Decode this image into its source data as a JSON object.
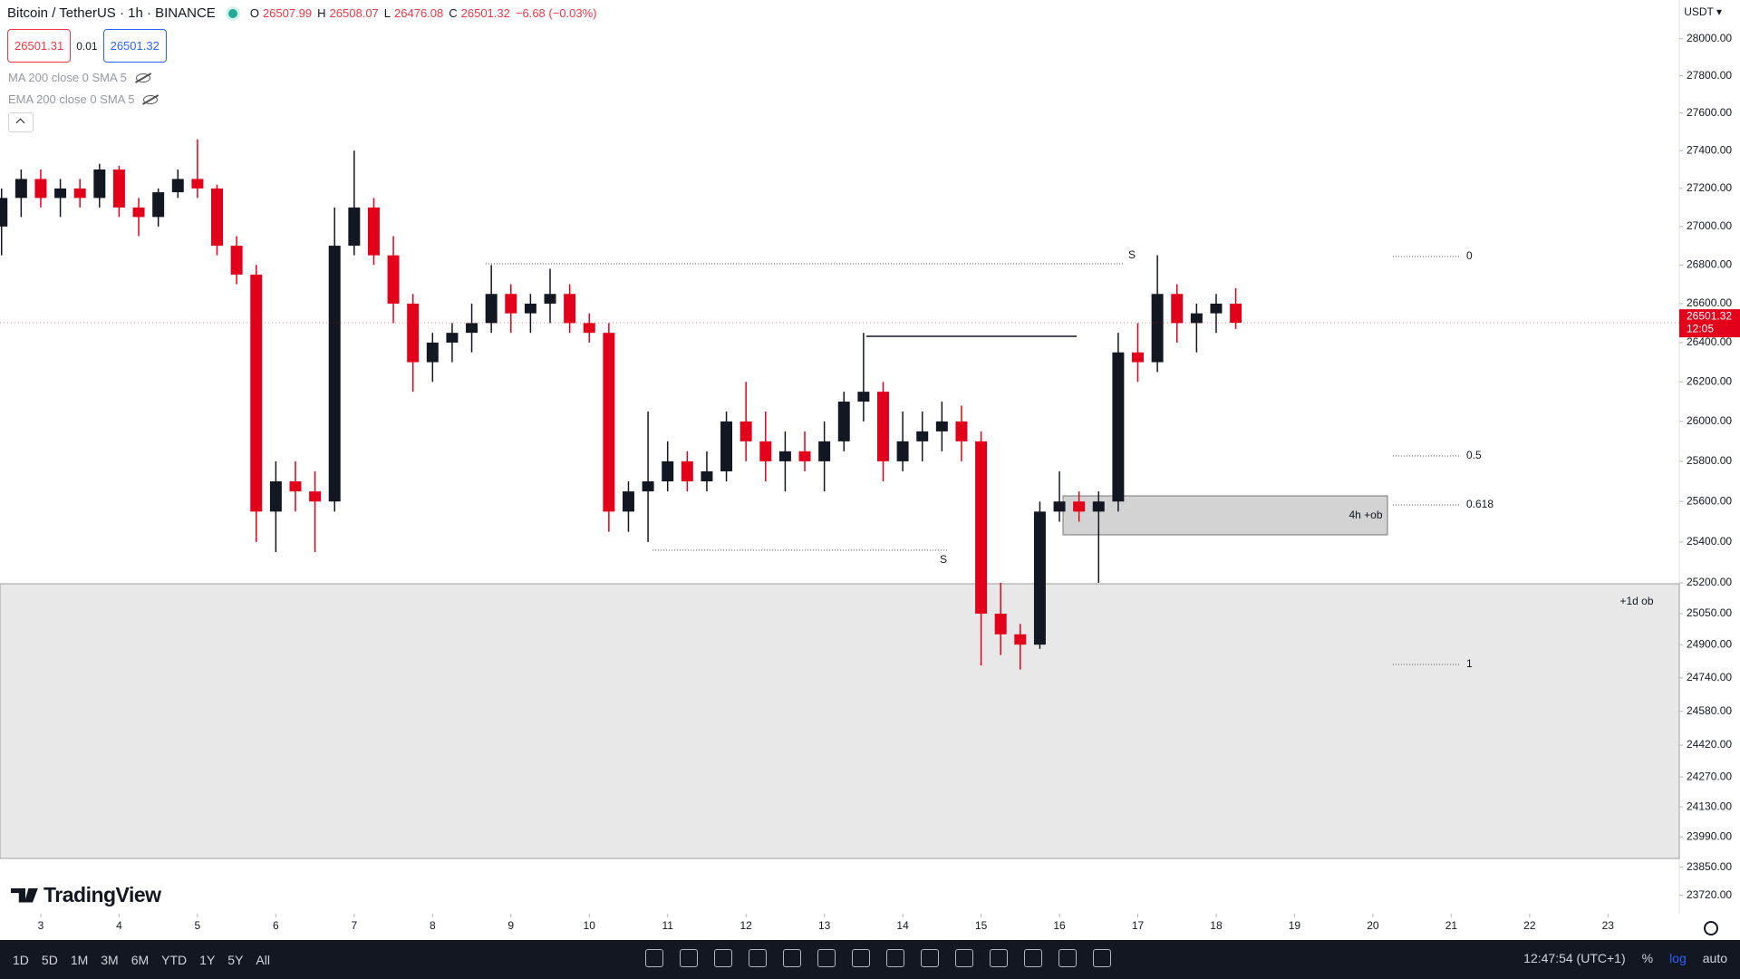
{
  "header": {
    "symbol": "Bitcoin / TetherUS · 1h · BINANCE",
    "ohlc": [
      {
        "label": "O",
        "value": "26507.99"
      },
      {
        "label": "H",
        "value": "26508.07"
      },
      {
        "label": "L",
        "value": "26476.08"
      },
      {
        "label": "C",
        "value": "26501.32"
      }
    ],
    "change": "−6.68 (−0.03%)",
    "sell": "26501.31",
    "spread": "0.01",
    "buy": "26501.32",
    "indicators": [
      "MA 200 close 0 SMA 5",
      "EMA 200 close 0 SMA 5"
    ],
    "currency": "USDT ▾",
    "brand": "TradingView"
  },
  "drawings": {
    "daily_zone": "+1d ob",
    "h4_zone": "4h +ob",
    "high_label": "S",
    "low_label": "S",
    "fib": [
      "0",
      "0.5",
      "0.618",
      "1"
    ]
  },
  "chart_data": {
    "type": "candlestick",
    "log_scale": true,
    "up_color": "#131722",
    "down_color": "#e3001b",
    "x": [
      2.5,
      2.75,
      3,
      3.25,
      3.5,
      3.75,
      4,
      4.25,
      4.5,
      4.75,
      5,
      5.25,
      5.5,
      5.75,
      6,
      6.25,
      6.5,
      6.75,
      7,
      7.25,
      7.5,
      7.75,
      8,
      8.25,
      8.5,
      8.75,
      9,
      9.25,
      9.5,
      9.75,
      10,
      10.25,
      10.5,
      10.75,
      11,
      11.25,
      11.5,
      11.75,
      12,
      12.25,
      12.5,
      12.75,
      13,
      13.25,
      13.5,
      13.75,
      14,
      14.25,
      14.5,
      14.75,
      15,
      15.25,
      15.5,
      15.75,
      16,
      16.25,
      16.5,
      16.75,
      17,
      17.25,
      17.5,
      17.75,
      18,
      18.25
    ],
    "open": [
      27000,
      27150,
      27250,
      27150,
      27200,
      27150,
      27300,
      27100,
      27050,
      27180,
      27250,
      27200,
      26900,
      26750,
      25550,
      25700,
      25650,
      25600,
      26900,
      27100,
      26850,
      26600,
      26300,
      26400,
      26450,
      26500,
      26650,
      26550,
      26600,
      26650,
      26500,
      26450,
      25550,
      25650,
      25700,
      25800,
      25700,
      25750,
      26000,
      25900,
      25800,
      25850,
      25800,
      25900,
      26100,
      26150,
      25800,
      25900,
      25950,
      26000,
      25900,
      25050,
      24950,
      24900,
      25550,
      25600,
      25550,
      25600,
      26350,
      26300,
      26650,
      26500,
      26550,
      26600
    ],
    "high": [
      27200,
      27300,
      27300,
      27250,
      27250,
      27330,
      27320,
      27150,
      27200,
      27300,
      27460,
      27220,
      26950,
      26800,
      25800,
      25800,
      25750,
      27100,
      27400,
      27150,
      26950,
      26650,
      26450,
      26500,
      26600,
      26800,
      26700,
      26650,
      26780,
      26700,
      26550,
      26500,
      25700,
      26050,
      25900,
      25850,
      25850,
      26050,
      26200,
      26050,
      25950,
      25950,
      26000,
      26150,
      26450,
      26200,
      26050,
      26050,
      26100,
      26080,
      25950,
      25200,
      25000,
      25600,
      25750,
      25650,
      25650,
      26450,
      26500,
      26850,
      26700,
      26600,
      26650,
      26680
    ],
    "low": [
      26850,
      27050,
      27100,
      27050,
      27100,
      27100,
      27050,
      26950,
      27000,
      27150,
      27150,
      26850,
      26700,
      25400,
      25350,
      25550,
      25350,
      25550,
      26850,
      26800,
      26500,
      26150,
      26200,
      26300,
      26350,
      26450,
      26450,
      26450,
      26500,
      26450,
      26400,
      25450,
      25450,
      25400,
      25650,
      25650,
      25650,
      25700,
      25800,
      25700,
      25650,
      25750,
      25650,
      25850,
      26000,
      25700,
      25750,
      25800,
      25850,
      25800,
      24800,
      24850,
      24780,
      24880,
      25500,
      25500,
      25200,
      25550,
      26200,
      26250,
      26400,
      26350,
      26450,
      26470
    ],
    "close": [
      27150,
      27250,
      27150,
      27200,
      27150,
      27300,
      27100,
      27050,
      27180,
      27250,
      27200,
      26900,
      26750,
      25550,
      25700,
      25650,
      25600,
      26900,
      27100,
      26850,
      26600,
      26300,
      26400,
      26450,
      26500,
      26650,
      26550,
      26600,
      26650,
      26500,
      26450,
      25550,
      25650,
      25700,
      25800,
      25700,
      25750,
      26000,
      25900,
      25800,
      25850,
      25800,
      25900,
      26100,
      26150,
      25800,
      25900,
      25950,
      26000,
      25900,
      25050,
      24950,
      24900,
      25550,
      25600,
      25550,
      25600,
      26350,
      26300,
      26650,
      26500,
      26550,
      26600,
      26501.32
    ],
    "last_price": "26501.32",
    "countdown": "12:05",
    "ylim": [
      23644,
      28211
    ],
    "yticks": [
      {
        "value": 28000,
        "label": "28000.00"
      },
      {
        "value": 27800,
        "label": "27800.00"
      },
      {
        "value": 27600,
        "label": "27600.00"
      },
      {
        "value": 27400,
        "label": "27400.00"
      },
      {
        "value": 27200,
        "label": "27200.00"
      },
      {
        "value": 27000,
        "label": "27000.00"
      },
      {
        "value": 26800,
        "label": "26800.00"
      },
      {
        "value": 26600,
        "label": "26600.00"
      },
      {
        "value": 26400,
        "label": "26400.00"
      },
      {
        "value": 26200,
        "label": "26200.00"
      },
      {
        "value": 26000,
        "label": "26000.00"
      },
      {
        "value": 25800,
        "label": "25800.00"
      },
      {
        "value": 25600,
        "label": "25600.00"
      },
      {
        "value": 25400,
        "label": "25400.00"
      },
      {
        "value": 25200,
        "label": "25200.00"
      },
      {
        "value": 25050,
        "label": "25050.00"
      },
      {
        "value": 24900,
        "label": "24900.00"
      },
      {
        "value": 24740,
        "label": "24740.00"
      },
      {
        "value": 24580,
        "label": "24580.00"
      },
      {
        "value": 24420,
        "label": "24420.00"
      },
      {
        "value": 24270,
        "label": "24270.00"
      },
      {
        "value": 24130,
        "label": "24130.00"
      },
      {
        "value": 23990,
        "label": "23990.00"
      },
      {
        "value": 23850,
        "label": "23850.00"
      },
      {
        "value": 23720,
        "label": "23720.00"
      }
    ],
    "xlim": [
      2.48,
      23.91
    ],
    "xticks": [
      3,
      4,
      5,
      6,
      7,
      8,
      9,
      10,
      11,
      12,
      13,
      14,
      15,
      16,
      17,
      18,
      19,
      20,
      21,
      22,
      23
    ]
  },
  "toolbar": {
    "ranges": [
      "1D",
      "5D",
      "1M",
      "3M",
      "6M",
      "YTD",
      "1Y",
      "5Y",
      "All"
    ],
    "clock": "12:47:54 (UTC+1)",
    "percent": "%",
    "log": "log",
    "auto": "auto"
  }
}
